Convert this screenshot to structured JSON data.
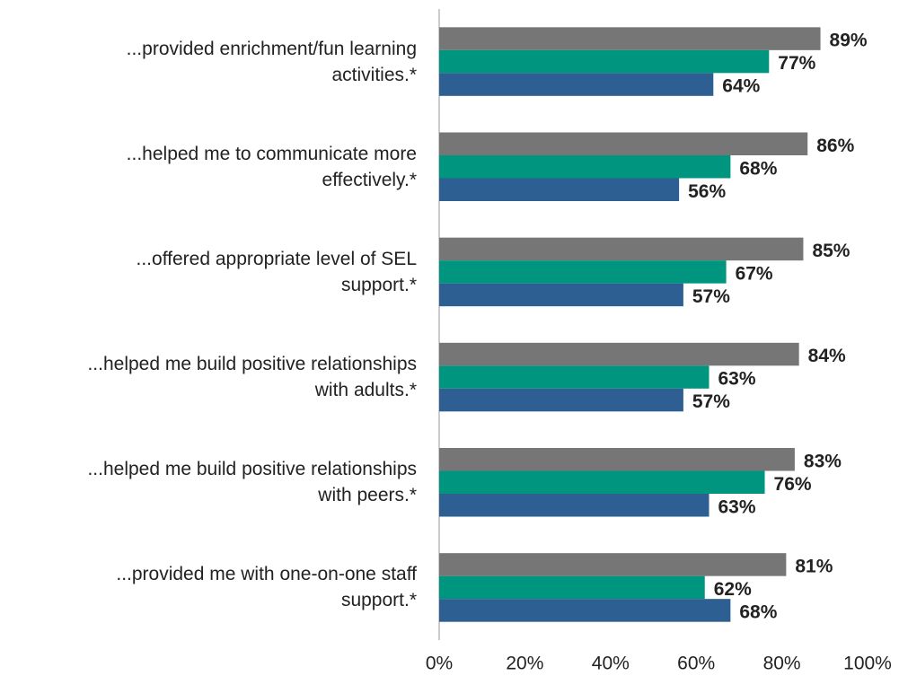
{
  "chart_data": {
    "type": "bar",
    "orientation": "horizontal",
    "categories": [
      "...provided enrichment/fun learning\nactivities.*",
      "...helped me to communicate more\neffectively.*",
      "...offered appropriate level of SEL\nsupport.*",
      "...helped me build positive relationships\nwith adults.*",
      "...helped me build positive relationships\nwith peers.*",
      "...provided me with one-on-one staff\nsupport.*"
    ],
    "series": [
      {
        "color": "#767676",
        "values": [
          89,
          86,
          85,
          84,
          83,
          81
        ],
        "value_labels": [
          "89%",
          "86%",
          "85%",
          "84%",
          "83%",
          "81%"
        ]
      },
      {
        "color": "#00957f",
        "values": [
          77,
          68,
          67,
          63,
          76,
          62
        ],
        "value_labels": [
          "77%",
          "68%",
          "67%",
          "63%",
          "76%",
          "62%"
        ]
      },
      {
        "color": "#2e5f92",
        "values": [
          64,
          56,
          57,
          57,
          63,
          68
        ],
        "value_labels": [
          "64%",
          "56%",
          "57%",
          "57%",
          "63%",
          "68%"
        ]
      }
    ],
    "xlim": [
      0,
      100
    ],
    "xticks": [
      {
        "value": 0,
        "label": "0%"
      },
      {
        "value": 20,
        "label": "20%"
      },
      {
        "value": 40,
        "label": "40%"
      },
      {
        "value": 60,
        "label": "60%"
      },
      {
        "value": 80,
        "label": "80%"
      },
      {
        "value": 100,
        "label": "100%"
      }
    ],
    "grid": false
  }
}
